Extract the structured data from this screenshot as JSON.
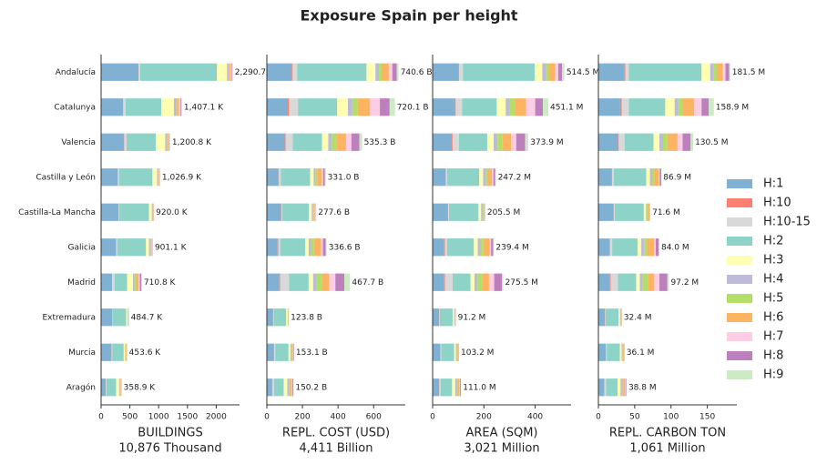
{
  "chart_data": {
    "type": "bar",
    "orientation": "horizontal",
    "title": "Exposure Spain per height",
    "categories": [
      "Andalucía",
      "Catalunya",
      "Valencia",
      "Castilla y León",
      "Castilla-La Mancha",
      "Galicia",
      "Madrid",
      "Extremadura",
      "Murcia",
      "Aragón"
    ],
    "panels": [
      {
        "xlabel": "BUILDINGS",
        "xsublabel": "10,876 Thousand",
        "xlim": [
          0,
          2405
        ],
        "xticks": [
          0,
          500,
          1000,
          1500,
          2000
        ],
        "totals": [
          2290.7,
          1407.1,
          1200.8,
          1026.9,
          920.0,
          901.1,
          710.8,
          484.7,
          453.6,
          358.9
        ],
        "total_labels": [
          "2,290.7 K",
          "1,407.1 K",
          "1,200.8 K",
          "1,026.9 K",
          "920.0 K",
          "901.1 K",
          "710.8 K",
          "484.7 K",
          "453.6 K",
          "358.9 K"
        ]
      },
      {
        "xlabel": "REPL. COST (USD)",
        "xsublabel": "4,411 Billion",
        "xlim": [
          0,
          778
        ],
        "xticks": [
          0,
          200,
          400,
          600
        ],
        "totals": [
          740.6,
          720.1,
          535.3,
          331.0,
          277.6,
          336.6,
          467.7,
          123.8,
          153.1,
          150.2
        ],
        "total_labels": [
          "740.6 B",
          "720.1 B",
          "535.3 B",
          "331.0 B",
          "277.6 B",
          "336.6 B",
          "467.7 B",
          "123.8 B",
          "153.1 B",
          "150.2 B"
        ]
      },
      {
        "xlabel": "AREA (SQM)",
        "xsublabel": "3,021 Million",
        "xlim": [
          0,
          540
        ],
        "xticks": [
          0,
          200,
          400
        ],
        "totals": [
          514.5,
          451.1,
          373.9,
          247.2,
          205.5,
          239.4,
          275.5,
          91.2,
          103.2,
          111.0
        ],
        "total_labels": [
          "514.5 M",
          "451.1 M",
          "373.9 M",
          "247.2 M",
          "205.5 M",
          "239.4 M",
          "275.5 M",
          "91.2 M",
          "103.2 M",
          "111.0 M"
        ]
      },
      {
        "xlabel": "REPL. CARBON TON",
        "xsublabel": "1,061 Million",
        "xlim": [
          0,
          190.6
        ],
        "xticks": [
          0,
          50,
          100,
          150
        ],
        "totals": [
          181.5,
          158.9,
          130.5,
          86.9,
          71.6,
          84.0,
          97.2,
          32.4,
          36.1,
          38.8
        ],
        "total_labels": [
          "181.5 M",
          "158.9 M",
          "130.5 M",
          "86.9 M",
          "71.6 M",
          "84.0 M",
          "97.2 M",
          "32.4 M",
          "36.1 M",
          "38.8 M"
        ]
      }
    ],
    "series": [
      {
        "name": "H:1",
        "color": "#80b1d3",
        "values": [
          [
            650,
            380,
            400,
            290,
            300,
            260,
            190,
            190,
            180,
            80
          ],
          [
            140,
            115,
            100,
            65,
            80,
            60,
            70,
            35,
            40,
            30
          ],
          [
            100,
            85,
            75,
            50,
            60,
            45,
            45,
            25,
            30,
            25
          ],
          [
            36,
            30,
            27,
            18,
            21,
            15,
            16,
            9,
            10,
            8
          ]
        ]
      },
      {
        "name": "H:10",
        "color": "#fb8072",
        "values": [
          [
            3,
            5,
            3,
            2,
            1,
            5,
            3,
            1,
            3,
            2
          ],
          [
            5,
            10,
            5,
            3,
            2,
            5,
            5,
            1,
            2,
            2
          ],
          [
            3,
            5,
            3,
            2,
            1,
            3,
            3,
            1,
            1,
            1
          ],
          [
            1,
            2,
            1,
            1,
            0.5,
            1,
            1,
            0.3,
            0.5,
            0.5
          ]
        ]
      },
      {
        "name": "H:10-15",
        "color": "#d9d9d9",
        "values": [
          [
            25,
            40,
            40,
            20,
            10,
            15,
            40,
            5,
            10,
            10
          ],
          [
            25,
            50,
            40,
            10,
            5,
            10,
            50,
            3,
            5,
            8
          ],
          [
            15,
            25,
            25,
            5,
            3,
            8,
            30,
            2,
            3,
            5
          ],
          [
            5,
            10,
            8,
            2,
            1,
            3,
            10,
            0.5,
            1,
            2
          ]
        ]
      },
      {
        "name": "H:2",
        "color": "#8dd3c7",
        "values": [
          [
            1335,
            620,
            510,
            580,
            520,
            500,
            220,
            240,
            200,
            170
          ],
          [
            390,
            220,
            165,
            165,
            150,
            140,
            110,
            70,
            75,
            55
          ],
          [
            280,
            135,
            110,
            125,
            115,
            105,
            70,
            50,
            50,
            45
          ],
          [
            100,
            50,
            40,
            45,
            40,
            35,
            25,
            18,
            18,
            16
          ]
        ]
      },
      {
        "name": "H:3",
        "color": "#ffffb3",
        "values": [
          [
            175,
            220,
            160,
            80,
            50,
            50,
            100,
            25,
            25,
            50
          ],
          [
            50,
            60,
            35,
            20,
            15,
            20,
            25,
            8,
            10,
            20
          ],
          [
            30,
            35,
            25,
            15,
            10,
            15,
            15,
            6,
            7,
            12
          ],
          [
            12,
            13,
            8,
            5,
            3,
            5,
            5,
            2,
            2.5,
            4
          ]
        ]
      },
      {
        "name": "H:4",
        "color": "#bebada",
        "values": [
          [
            30,
            40,
            25,
            20,
            12,
            20,
            30,
            8,
            10,
            15
          ],
          [
            20,
            25,
            20,
            10,
            5,
            15,
            20,
            2,
            5,
            10
          ],
          [
            15,
            15,
            15,
            10,
            5,
            12,
            12,
            2,
            3,
            6
          ],
          [
            5,
            5,
            5,
            3,
            1.5,
            4,
            4,
            0.8,
            1,
            2
          ]
        ]
      },
      {
        "name": "H:5",
        "color": "#b3de69",
        "values": [
          [
            10,
            15,
            10,
            8,
            8,
            10,
            20,
            5,
            5,
            5
          ],
          [
            15,
            30,
            25,
            10,
            5,
            15,
            30,
            2,
            4,
            5
          ],
          [
            10,
            20,
            18,
            8,
            4,
            10,
            20,
            2,
            3,
            4
          ],
          [
            4,
            6,
            6,
            3,
            1.5,
            4,
            7,
            0.6,
            1,
            1.5
          ]
        ]
      },
      {
        "name": "H:6",
        "color": "#fdb462",
        "values": [
          [
            25,
            35,
            20,
            10,
            8,
            15,
            50,
            5,
            10,
            12
          ],
          [
            40,
            70,
            55,
            25,
            8,
            40,
            40,
            2,
            6,
            10
          ],
          [
            25,
            45,
            35,
            17,
            4,
            25,
            25,
            2,
            3,
            7
          ],
          [
            8,
            16,
            14,
            6,
            2,
            10,
            9,
            0.7,
            1.2,
            2.5
          ]
        ]
      },
      {
        "name": "H:7",
        "color": "#fccde5",
        "values": [
          [
            15,
            25,
            12,
            5,
            3,
            8,
            20,
            2,
            4,
            5
          ],
          [
            20,
            55,
            30,
            8,
            3,
            10,
            35,
            0.5,
            3,
            4
          ],
          [
            12,
            35,
            20,
            5,
            1.5,
            5,
            20,
            0.6,
            1.2,
            2
          ],
          [
            4,
            10,
            7,
            1.5,
            0.5,
            2,
            7,
            0.2,
            0.4,
            0.8
          ]
        ]
      },
      {
        "name": "H:8",
        "color": "#bc80bd",
        "values": [
          [
            10,
            12,
            10,
            4,
            3,
            8,
            25,
            1,
            3,
            4
          ],
          [
            25,
            55,
            45,
            10,
            2,
            15,
            50,
            0.3,
            3,
            5
          ],
          [
            15,
            30,
            35,
            7,
            1,
            8,
            30,
            0.4,
            1.5,
            3
          ],
          [
            5,
            10,
            11,
            2,
            0.3,
            4,
            11,
            0.2,
            0.4,
            1
          ]
        ]
      },
      {
        "name": "H:9",
        "color": "#ccebc5",
        "values": [
          [
            12,
            15,
            10,
            8,
            5,
            10,
            12,
            3,
            3,
            6
          ],
          [
            10,
            30,
            15,
            5,
            2,
            6,
            32,
            0.1,
            0.1,
            1
          ],
          [
            9,
            21,
            12,
            3,
            1,
            3.4,
            5.5,
            0.2,
            0.5,
            1
          ],
          [
            1.5,
            6.9,
            3.5,
            0.4,
            0.3,
            1,
            2.2,
            0.1,
            0.1,
            0.5
          ]
        ]
      }
    ]
  }
}
